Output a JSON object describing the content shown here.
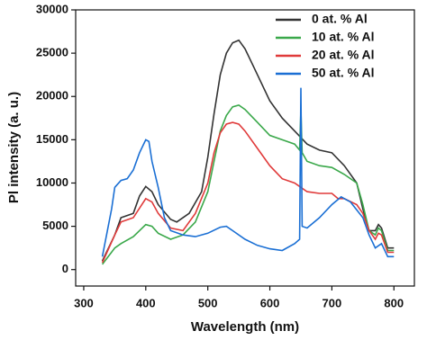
{
  "chart_data": {
    "type": "line",
    "xlabel": "Wavelength (nm)",
    "ylabel": "Pl intensity (a. u.)",
    "xlim": [
      287,
      833
    ],
    "xticks": [
      300,
      400,
      500,
      600,
      700,
      800
    ],
    "ylim": [
      -1900,
      30000
    ],
    "yticks": [
      0,
      5000,
      10000,
      15000,
      20000,
      25000,
      30000
    ],
    "legend": "upper right",
    "series": [
      {
        "name": "0 at. % Al",
        "color": "#333333",
        "x": [
          330,
          350,
          360,
          380,
          390,
          400,
          410,
          420,
          440,
          450,
          470,
          490,
          500,
          510,
          520,
          530,
          540,
          550,
          560,
          570,
          580,
          600,
          620,
          640,
          660,
          680,
          700,
          720,
          740,
          750,
          760,
          770,
          775,
          780,
          790,
          800
        ],
        "values": [
          1000,
          4000,
          6000,
          6500,
          8500,
          9600,
          9000,
          7500,
          5800,
          5500,
          6500,
          9000,
          13000,
          18000,
          22500,
          25000,
          26200,
          26500,
          25500,
          24000,
          22500,
          19500,
          17500,
          16000,
          14500,
          13800,
          13500,
          12000,
          10000,
          7000,
          4500,
          4500,
          5200,
          4800,
          2500,
          2500
        ]
      },
      {
        "name": "10 at. % Al",
        "color": "#3aa84a",
        "x": [
          330,
          350,
          360,
          380,
          400,
          410,
          420,
          440,
          460,
          480,
          500,
          510,
          520,
          530,
          540,
          550,
          560,
          580,
          600,
          620,
          640,
          648,
          650,
          652,
          660,
          680,
          700,
          720,
          740,
          750,
          760,
          770,
          775,
          780,
          790,
          800
        ],
        "values": [
          600,
          2500,
          3000,
          3800,
          5200,
          5000,
          4200,
          3500,
          4000,
          5500,
          9000,
          12500,
          16000,
          17800,
          18800,
          19000,
          18500,
          17000,
          15500,
          15000,
          14500,
          13800,
          18500,
          13500,
          12500,
          12000,
          11800,
          11000,
          10000,
          7500,
          4500,
          4000,
          4800,
          4500,
          2200,
          2200
        ]
      },
      {
        "name": "20 at. % Al",
        "color": "#e03a3a",
        "x": [
          330,
          350,
          360,
          380,
          400,
          410,
          420,
          440,
          460,
          480,
          500,
          510,
          520,
          530,
          540,
          550,
          560,
          580,
          600,
          620,
          640,
          650,
          660,
          680,
          700,
          710,
          720,
          740,
          750,
          760,
          770,
          775,
          780,
          790,
          800
        ],
        "values": [
          800,
          4000,
          5500,
          6000,
          8200,
          7800,
          6500,
          4800,
          4500,
          6500,
          10000,
          13500,
          15800,
          16800,
          17000,
          16800,
          16000,
          14000,
          12000,
          10500,
          10000,
          9500,
          9000,
          8800,
          8800,
          8200,
          8200,
          7500,
          6500,
          4500,
          3500,
          4200,
          4000,
          2000,
          2000
        ]
      },
      {
        "name": "50 at. % Al",
        "color": "#1a6fd4",
        "x": [
          330,
          345,
          350,
          360,
          370,
          380,
          390,
          400,
          405,
          410,
          420,
          430,
          440,
          460,
          480,
          500,
          520,
          530,
          540,
          560,
          580,
          600,
          620,
          640,
          648,
          650,
          652,
          660,
          680,
          700,
          715,
          730,
          750,
          760,
          770,
          780,
          790,
          800
        ],
        "values": [
          1500,
          7000,
          9500,
          10300,
          10500,
          11500,
          13500,
          15000,
          14800,
          12500,
          9500,
          6000,
          4500,
          4000,
          3800,
          4200,
          4900,
          5000,
          4500,
          3500,
          2800,
          2400,
          2200,
          3000,
          3500,
          21000,
          5000,
          4800,
          6000,
          7500,
          8400,
          7800,
          6000,
          4000,
          2500,
          3000,
          1500,
          1500
        ]
      }
    ]
  }
}
